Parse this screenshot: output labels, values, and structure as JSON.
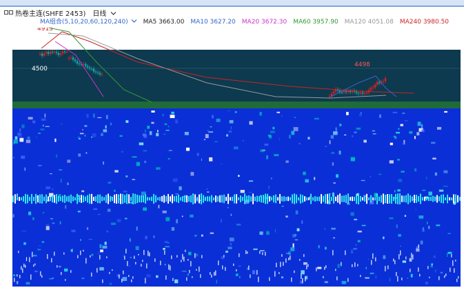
{
  "header": {
    "instrument_title": "热卷主连(SHFE 2453)",
    "period_label": "日线",
    "icon": "chart-symbol-icon",
    "dropdown_icon": "chevron-down-icon"
  },
  "ma_legend": {
    "group_label": "MA组合(5,10,20,60,120,240)",
    "items": [
      {
        "label": "MA5 3663.00",
        "color": "#222222"
      },
      {
        "label": "MA10 3627.20",
        "color": "#3366cc"
      },
      {
        "label": "MA20 3672.30",
        "color": "#cc33cc"
      },
      {
        "label": "MA60 3957.90",
        "color": "#339933"
      },
      {
        "label": "MA120 4051.08",
        "color": "#999999"
      },
      {
        "label": "MA240 3980.50",
        "color": "#cc2222"
      }
    ]
  },
  "chart": {
    "price_axis_label": "4500",
    "peak_left": "4913",
    "peak_right": "4498",
    "colors": {
      "dark_panel": "#0d3a4f",
      "blue_panel": "#0b2fd6",
      "green_band": "#1f6b3a",
      "up": "#e02020",
      "down": "#19a8a8"
    }
  }
}
